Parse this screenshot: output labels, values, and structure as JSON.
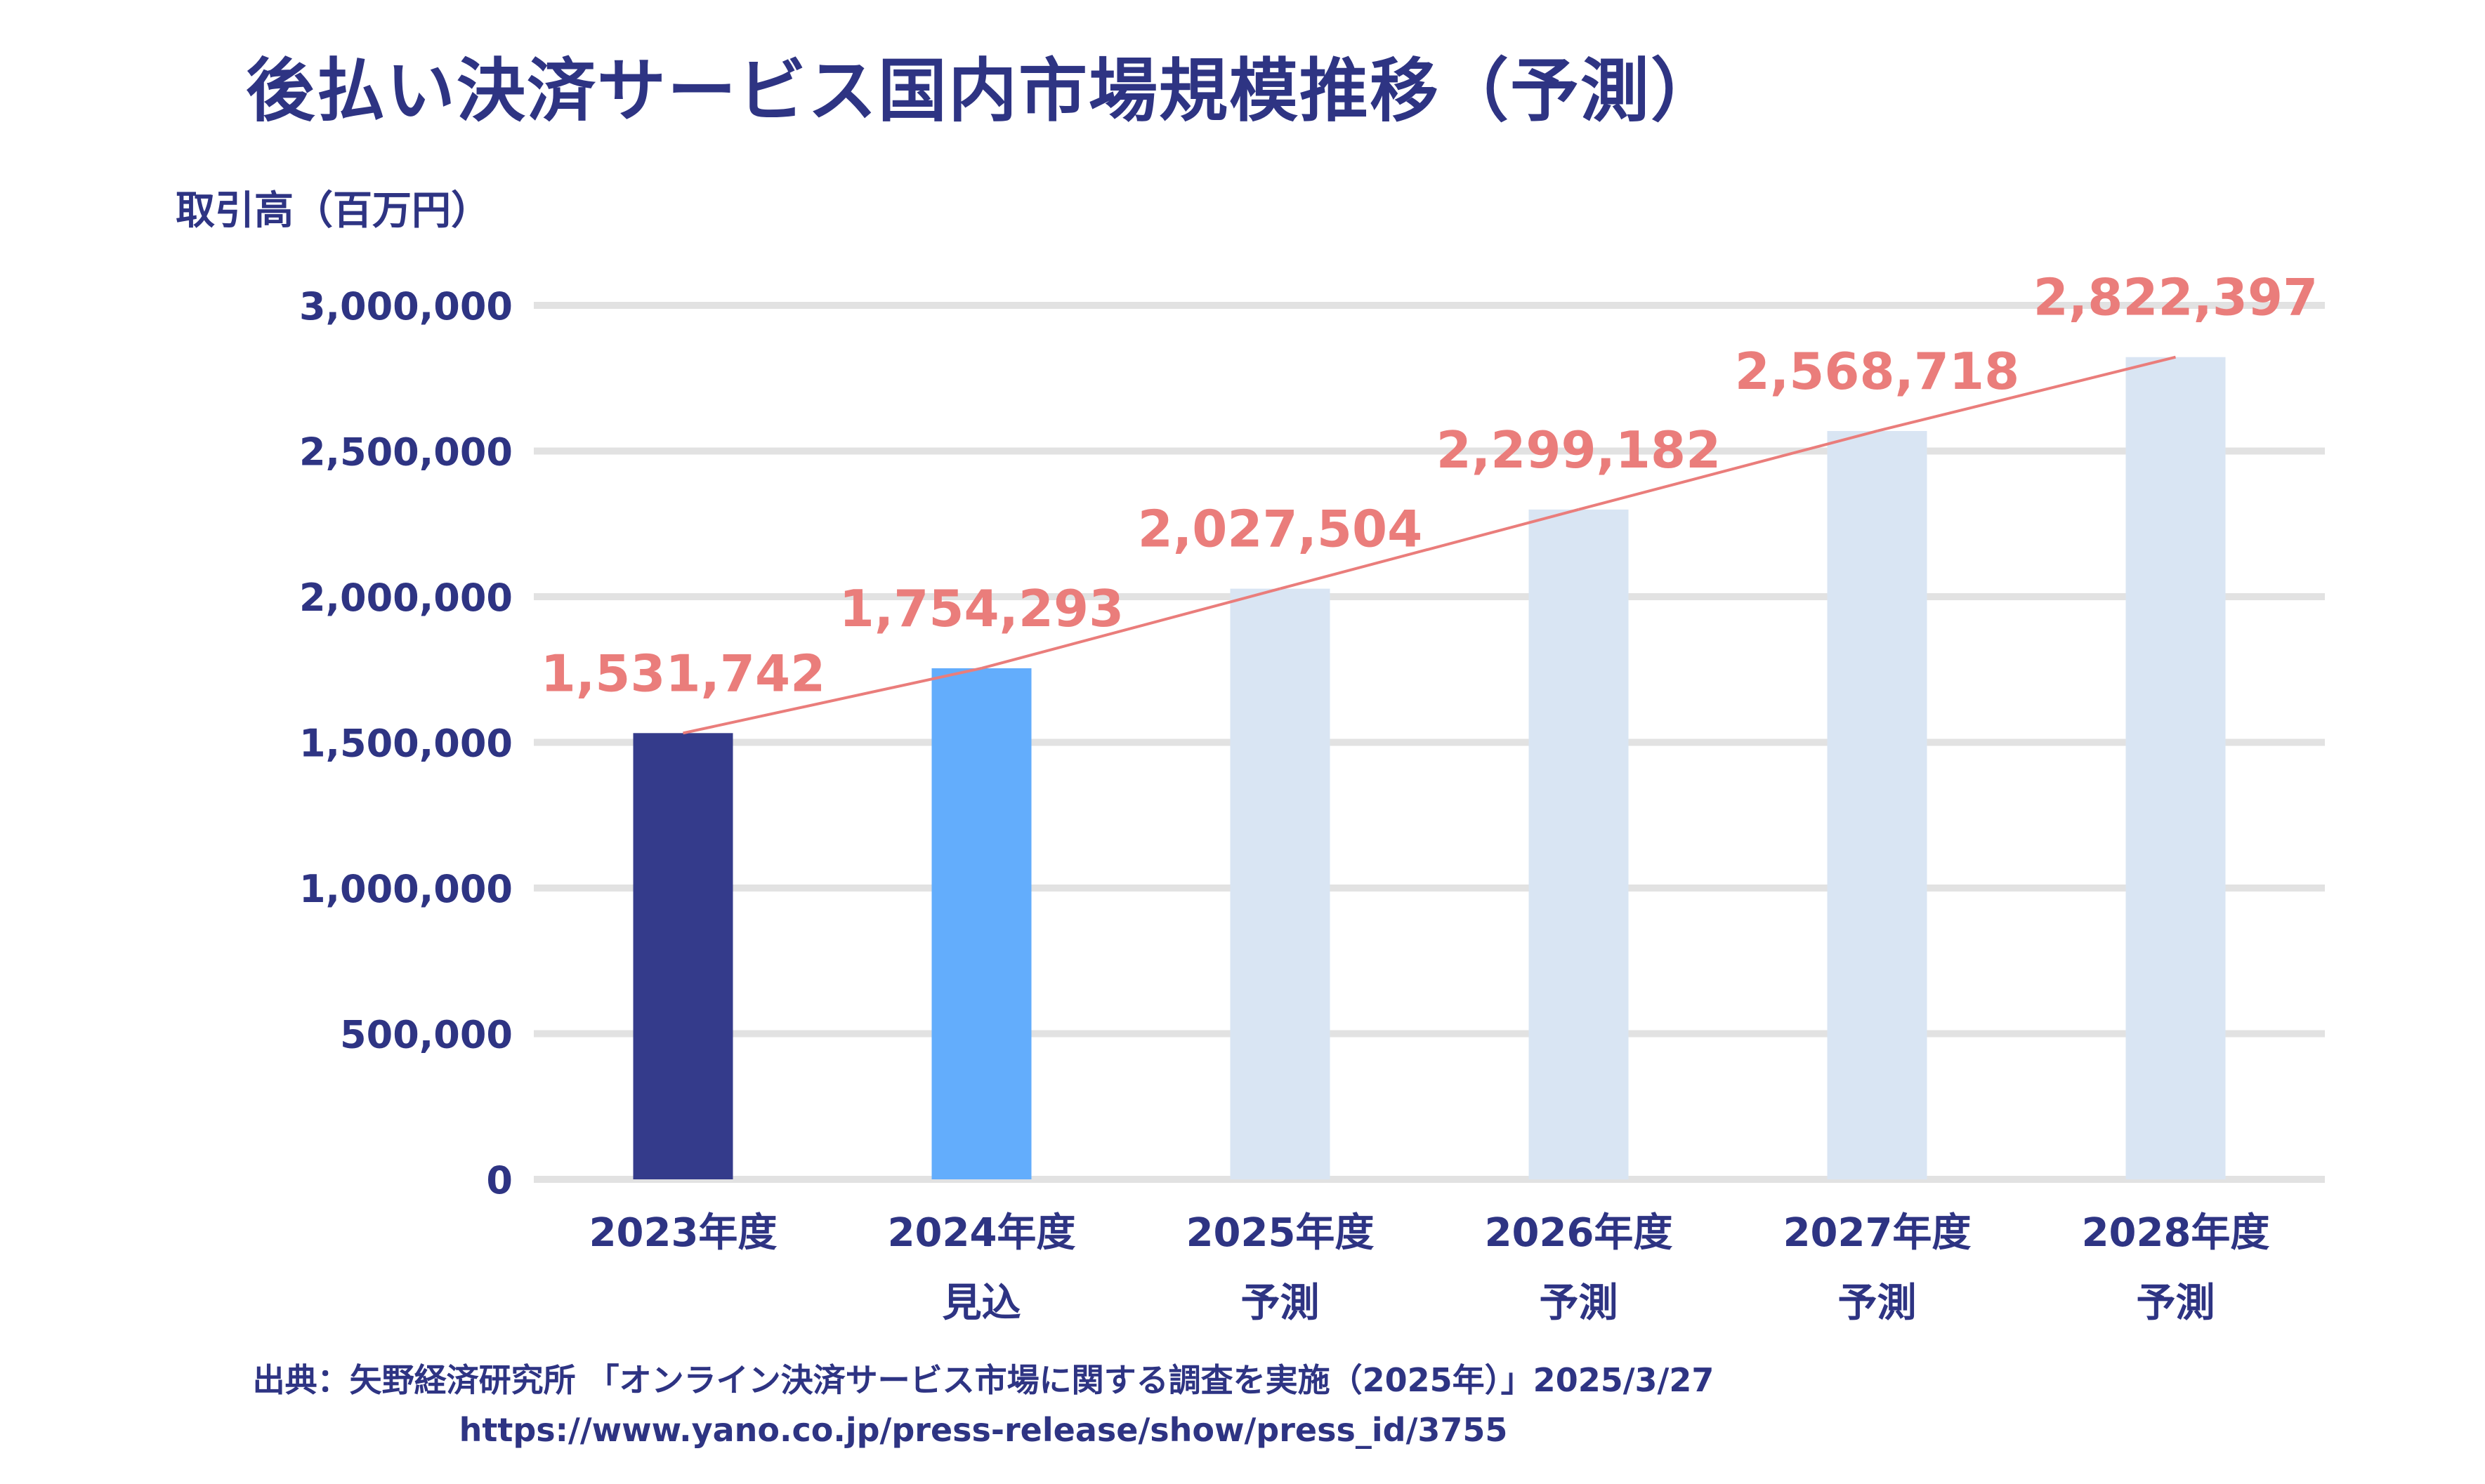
{
  "title": "後払い決済サービス国内市場規模推移（予測）",
  "chart_data": {
    "type": "bar",
    "ylabel": "取引高（百万円）",
    "ylim": [
      0,
      3000000
    ],
    "yticks": [
      "0",
      "500,000",
      "1,000,000",
      "1,500,000",
      "2,000,000",
      "2,500,000",
      "3,000,000"
    ],
    "categories": [
      [
        "2023年度",
        ""
      ],
      [
        "2024年度",
        "見込"
      ],
      [
        "2025年度",
        "予測"
      ],
      [
        "2026年度",
        "予測"
      ],
      [
        "2027年度",
        "予測"
      ],
      [
        "2028年度",
        "予測"
      ]
    ],
    "values": [
      1531742,
      1754293,
      2027504,
      2299182,
      2568718,
      2822397
    ],
    "value_labels": [
      "1,531,742",
      "1,754,293",
      "2,027,504",
      "2,299,182",
      "2,568,718",
      "2,822,397"
    ],
    "bar_colors": [
      "#343b8b",
      "#63adfc",
      "#d9e5f3",
      "#d9e5f3",
      "#d9e5f3",
      "#d9e5f3"
    ],
    "trend_line": true,
    "grid": true,
    "colors": {
      "text": "#2e3483",
      "labels": "#ea7d7b",
      "grid": "#e2e2e2",
      "line": "#ea7d7b"
    }
  },
  "source": {
    "line1": "出典：矢野経済研究所 「オンライン決済サービス市場に関する調査を実施（2025年）」2025/3/27",
    "line2": "https://www.yano.co.jp/press-release/show/press_id/3755"
  }
}
